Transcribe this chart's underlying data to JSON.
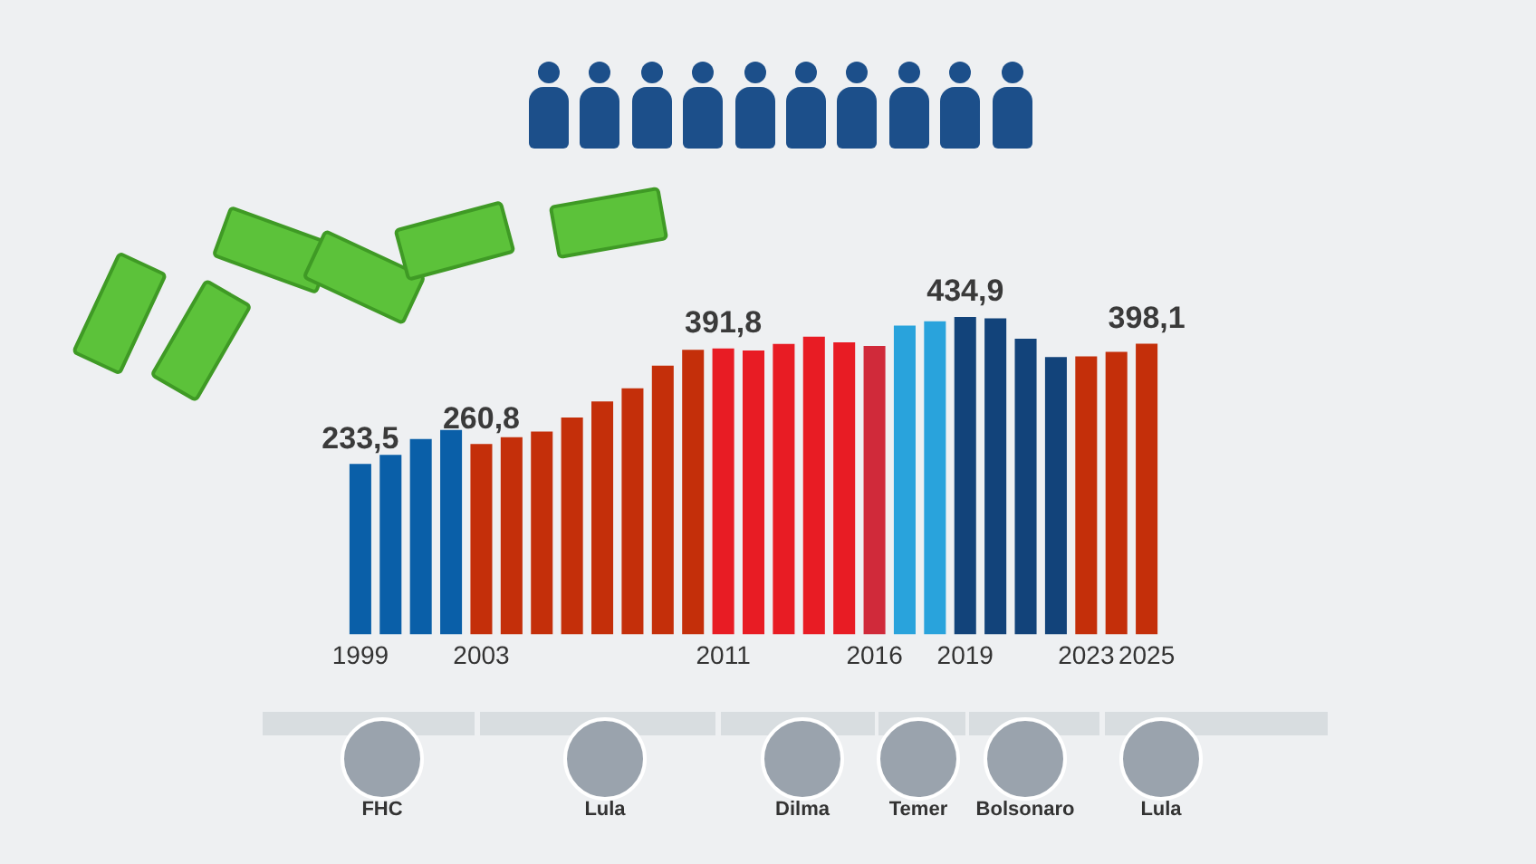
{
  "chart_data": {
    "type": "bar",
    "categories": [
      "1999",
      null,
      null,
      null,
      "2003",
      null,
      null,
      null,
      null,
      null,
      null,
      null,
      "2011",
      null,
      null,
      null,
      null,
      "2016",
      null,
      null,
      "2019",
      null,
      null,
      null,
      "2023",
      null,
      "2025"
    ],
    "values": [
      233.5,
      246,
      267.5,
      280,
      260.8,
      270,
      278,
      297,
      319,
      337,
      368,
      390,
      391.8,
      389,
      398,
      408,
      400,
      395,
      423,
      429,
      434.9,
      433,
      405,
      380,
      381,
      387,
      398.1
    ],
    "colors": [
      "#0a5fa8",
      "#0a5fa8",
      "#0a5fa8",
      "#0a5fa8",
      "#c42f0a",
      "#c42f0a",
      "#c42f0a",
      "#c42f0a",
      "#c42f0a",
      "#c42f0a",
      "#c42f0a",
      "#c42f0a",
      "#e81c24",
      "#e81c24",
      "#e81c24",
      "#e81c24",
      "#e81c24",
      "#d02a3a",
      "#29a3dc",
      "#29a3dc",
      "#12437a",
      "#12437a",
      "#12437a",
      "#12437a",
      "#c42f0a",
      "#c42f0a",
      "#c42f0a"
    ],
    "value_labels": [
      "233,5",
      null,
      null,
      null,
      "260,8",
      null,
      null,
      null,
      null,
      null,
      null,
      null,
      "391,8",
      null,
      null,
      null,
      null,
      null,
      null,
      null,
      "434,9",
      null,
      null,
      null,
      null,
      null,
      "398,1"
    ],
    "tick_labels": "x",
    "grid": false,
    "legend": false,
    "annotations": [
      "FHC",
      "Lula",
      "Dilma",
      "Temer",
      "Bolsonaro",
      "Lula"
    ]
  }
}
